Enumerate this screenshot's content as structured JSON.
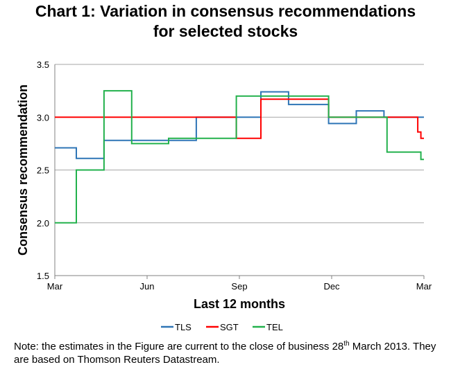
{
  "title": {
    "line1": "Chart 1: Variation in consensus recommendations",
    "line2": "for selected stocks"
  },
  "note": {
    "part1": "Note: the estimates in the Figure are current to the close of business 28",
    "sup": "th",
    "part2": " March 2013. They are based on Thomson Reuters Datastream."
  },
  "chart_data": {
    "type": "line",
    "title": "Chart 1: Variation in consensus recommendations for selected stocks",
    "xlabel": "Last 12 months",
    "ylabel": "Consensus recommendation",
    "ylim": [
      1.5,
      3.5
    ],
    "yticks": [
      1.5,
      2.0,
      2.5,
      3.0,
      3.5
    ],
    "ytick_labels": [
      "1.5",
      "2.0",
      "2.5",
      "3.0",
      "3.5"
    ],
    "xlim": [
      0,
      12
    ],
    "xticks": [
      0,
      3,
      6,
      9,
      12
    ],
    "xtick_labels": [
      "Mar",
      "Jun",
      "Sep",
      "Dec",
      "Mar"
    ],
    "x_unit": "months since start of period",
    "grid": "horizontal",
    "legend": "bottom",
    "step": true,
    "series": [
      {
        "name": "TLS",
        "color": "#2e75b6",
        "x": [
          0,
          0.7,
          0.7,
          1.6,
          1.6,
          4.6,
          4.6,
          6.7,
          6.7,
          7.6,
          7.6,
          8.9,
          8.9,
          9.8,
          9.8,
          10.7,
          10.7,
          12
        ],
        "y": [
          2.71,
          2.71,
          2.61,
          2.61,
          2.78,
          2.78,
          3.0,
          3.0,
          3.24,
          3.24,
          3.12,
          3.12,
          2.94,
          2.94,
          3.06,
          3.06,
          3.0,
          3.0
        ]
      },
      {
        "name": "SGT",
        "color": "#ff0000",
        "x": [
          0,
          5.9,
          5.9,
          6.7,
          6.7,
          8.9,
          8.9,
          11.8,
          11.8,
          11.9,
          11.9,
          12
        ],
        "y": [
          3.0,
          3.0,
          2.8,
          2.8,
          3.17,
          3.17,
          3.0,
          3.0,
          2.86,
          2.86,
          2.8,
          2.8
        ]
      },
      {
        "name": "TEL",
        "color": "#22b14c",
        "x": [
          0,
          0.7,
          0.7,
          1.6,
          1.6,
          2.5,
          2.5,
          3.7,
          3.7,
          5.9,
          5.9,
          8.9,
          8.9,
          10.8,
          10.8,
          11.9,
          11.9,
          12
        ],
        "y": [
          2.0,
          2.0,
          2.5,
          2.5,
          3.25,
          3.25,
          2.75,
          2.75,
          2.8,
          2.8,
          3.2,
          3.2,
          3.0,
          3.0,
          2.67,
          2.67,
          2.6,
          2.6
        ]
      }
    ]
  }
}
